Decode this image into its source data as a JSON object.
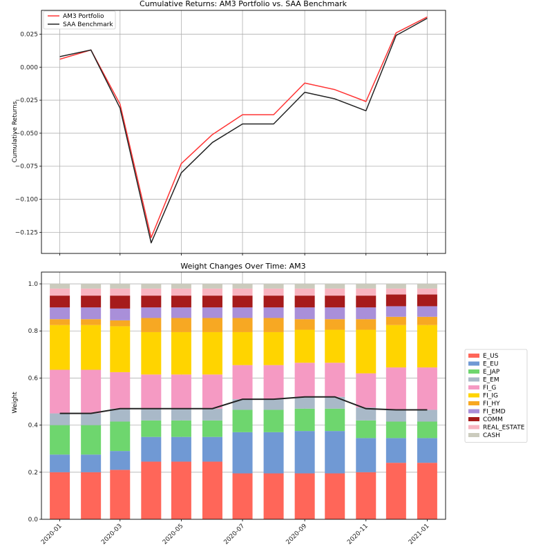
{
  "chart_data": [
    {
      "type": "line",
      "title": "Cumulative Returns: AM3 Portfolio vs. SAA Benchmark",
      "xlabel": "",
      "ylabel": "Cumulative Returns",
      "x": [
        "2020-01-01",
        "2020-02-01",
        "2020-03-01",
        "2020-04-01",
        "2020-05-01",
        "2020-06-01",
        "2020-07-01",
        "2020-08-01",
        "2020-09-01",
        "2020-10-01",
        "2020-11-01",
        "2020-12-01",
        "2021-01-01"
      ],
      "ylim": [
        -0.141,
        0.043
      ],
      "yticks": [
        -0.125,
        -0.1,
        -0.075,
        -0.05,
        -0.025,
        0.0,
        0.025
      ],
      "ytick_labels": [
        "−0.125",
        "−0.100",
        "−0.075",
        "−0.050",
        "−0.025",
        "0.000",
        "0.025"
      ],
      "grid": true,
      "legend": "top-left",
      "series": [
        {
          "name": "AM3 Portfolio",
          "color": "#ff3333",
          "values": [
            0.006,
            0.013,
            -0.028,
            -0.129,
            -0.073,
            -0.051,
            -0.036,
            -0.036,
            -0.012,
            -0.017,
            -0.026,
            0.026,
            0.038
          ]
        },
        {
          "name": "SAA Benchmark",
          "color": "#222222",
          "values": [
            0.008,
            0.013,
            -0.031,
            -0.133,
            -0.08,
            -0.057,
            -0.043,
            -0.043,
            -0.019,
            -0.024,
            -0.033,
            0.024,
            0.037
          ]
        }
      ]
    },
    {
      "type": "bar",
      "stacked": true,
      "title": "Weight Changes Over Time: AM3",
      "xlabel": "",
      "ylabel": "Weight",
      "categories": [
        "2020-01-01",
        "2020-02-01",
        "2020-03-01",
        "2020-04-01",
        "2020-05-01",
        "2020-06-01",
        "2020-07-01",
        "2020-08-01",
        "2020-09-01",
        "2020-10-01",
        "2020-11-01",
        "2020-12-01",
        "2021-01-01"
      ],
      "ylim": [
        0,
        1.05
      ],
      "yticks": [
        0.0,
        0.2,
        0.4,
        0.6,
        0.8,
        1.0
      ],
      "ytick_labels": [
        "0.0",
        "0.2",
        "0.4",
        "0.6",
        "0.8",
        "1.0"
      ],
      "grid": true,
      "legend": "right",
      "series": [
        {
          "name": "E_US",
          "color": "#ff6659",
          "values": [
            0.2,
            0.2,
            0.21,
            0.245,
            0.245,
            0.245,
            0.195,
            0.195,
            0.195,
            0.195,
            0.2,
            0.24,
            0.24
          ]
        },
        {
          "name": "E_EU",
          "color": "#7099d4",
          "values": [
            0.075,
            0.075,
            0.08,
            0.105,
            0.105,
            0.105,
            0.175,
            0.175,
            0.18,
            0.18,
            0.145,
            0.105,
            0.105
          ]
        },
        {
          "name": "E_JAP",
          "color": "#6ed66e",
          "values": [
            0.125,
            0.125,
            0.125,
            0.07,
            0.07,
            0.07,
            0.095,
            0.095,
            0.095,
            0.095,
            0.075,
            0.07,
            0.07
          ]
        },
        {
          "name": "E_EM",
          "color": "#a9b9c8",
          "values": [
            0.05,
            0.05,
            0.055,
            0.05,
            0.05,
            0.05,
            0.045,
            0.045,
            0.05,
            0.05,
            0.055,
            0.05,
            0.05
          ]
        },
        {
          "name": "FI_G",
          "color": "#f59ac3",
          "values": [
            0.185,
            0.185,
            0.155,
            0.145,
            0.145,
            0.145,
            0.145,
            0.145,
            0.145,
            0.145,
            0.145,
            0.18,
            0.18
          ]
        },
        {
          "name": "FI_IG",
          "color": "#ffd400",
          "values": [
            0.19,
            0.19,
            0.195,
            0.18,
            0.18,
            0.18,
            0.14,
            0.14,
            0.14,
            0.14,
            0.185,
            0.18,
            0.18
          ]
        },
        {
          "name": "FI_HY",
          "color": "#f7a823",
          "values": [
            0.025,
            0.025,
            0.025,
            0.06,
            0.06,
            0.06,
            0.06,
            0.06,
            0.045,
            0.045,
            0.045,
            0.035,
            0.035
          ]
        },
        {
          "name": "FI_EMD",
          "color": "#a98fd9",
          "values": [
            0.05,
            0.05,
            0.05,
            0.045,
            0.045,
            0.045,
            0.045,
            0.045,
            0.05,
            0.05,
            0.05,
            0.045,
            0.045
          ]
        },
        {
          "name": "COMM",
          "color": "#a61b1b",
          "values": [
            0.05,
            0.05,
            0.055,
            0.05,
            0.05,
            0.05,
            0.05,
            0.05,
            0.05,
            0.05,
            0.05,
            0.05,
            0.05
          ]
        },
        {
          "name": "REAL_ESTATE",
          "color": "#f8b4c0",
          "values": [
            0.03,
            0.03,
            0.03,
            0.03,
            0.03,
            0.03,
            0.03,
            0.03,
            0.03,
            0.03,
            0.03,
            0.025,
            0.025
          ]
        },
        {
          "name": "CASH",
          "color": "#cbcbbd",
          "values": [
            0.02,
            0.02,
            0.02,
            0.02,
            0.02,
            0.02,
            0.02,
            0.02,
            0.02,
            0.02,
            0.02,
            0.02,
            0.02
          ]
        }
      ],
      "overlay_line": {
        "color": "#222222",
        "values": [
          0.45,
          0.45,
          0.47,
          0.47,
          0.47,
          0.47,
          0.51,
          0.51,
          0.52,
          0.52,
          0.47,
          0.465,
          0.465
        ]
      },
      "xticks": [
        "2020-01-01",
        "2020-03-01",
        "2020-05-01",
        "2020-07-01",
        "2020-09-01",
        "2020-11-01",
        "2021-01-01"
      ],
      "xtick_labels": [
        "2020-01",
        "2020-03",
        "2020-05",
        "2020-07",
        "2020-09",
        "2020-11",
        "2021-01"
      ]
    }
  ]
}
